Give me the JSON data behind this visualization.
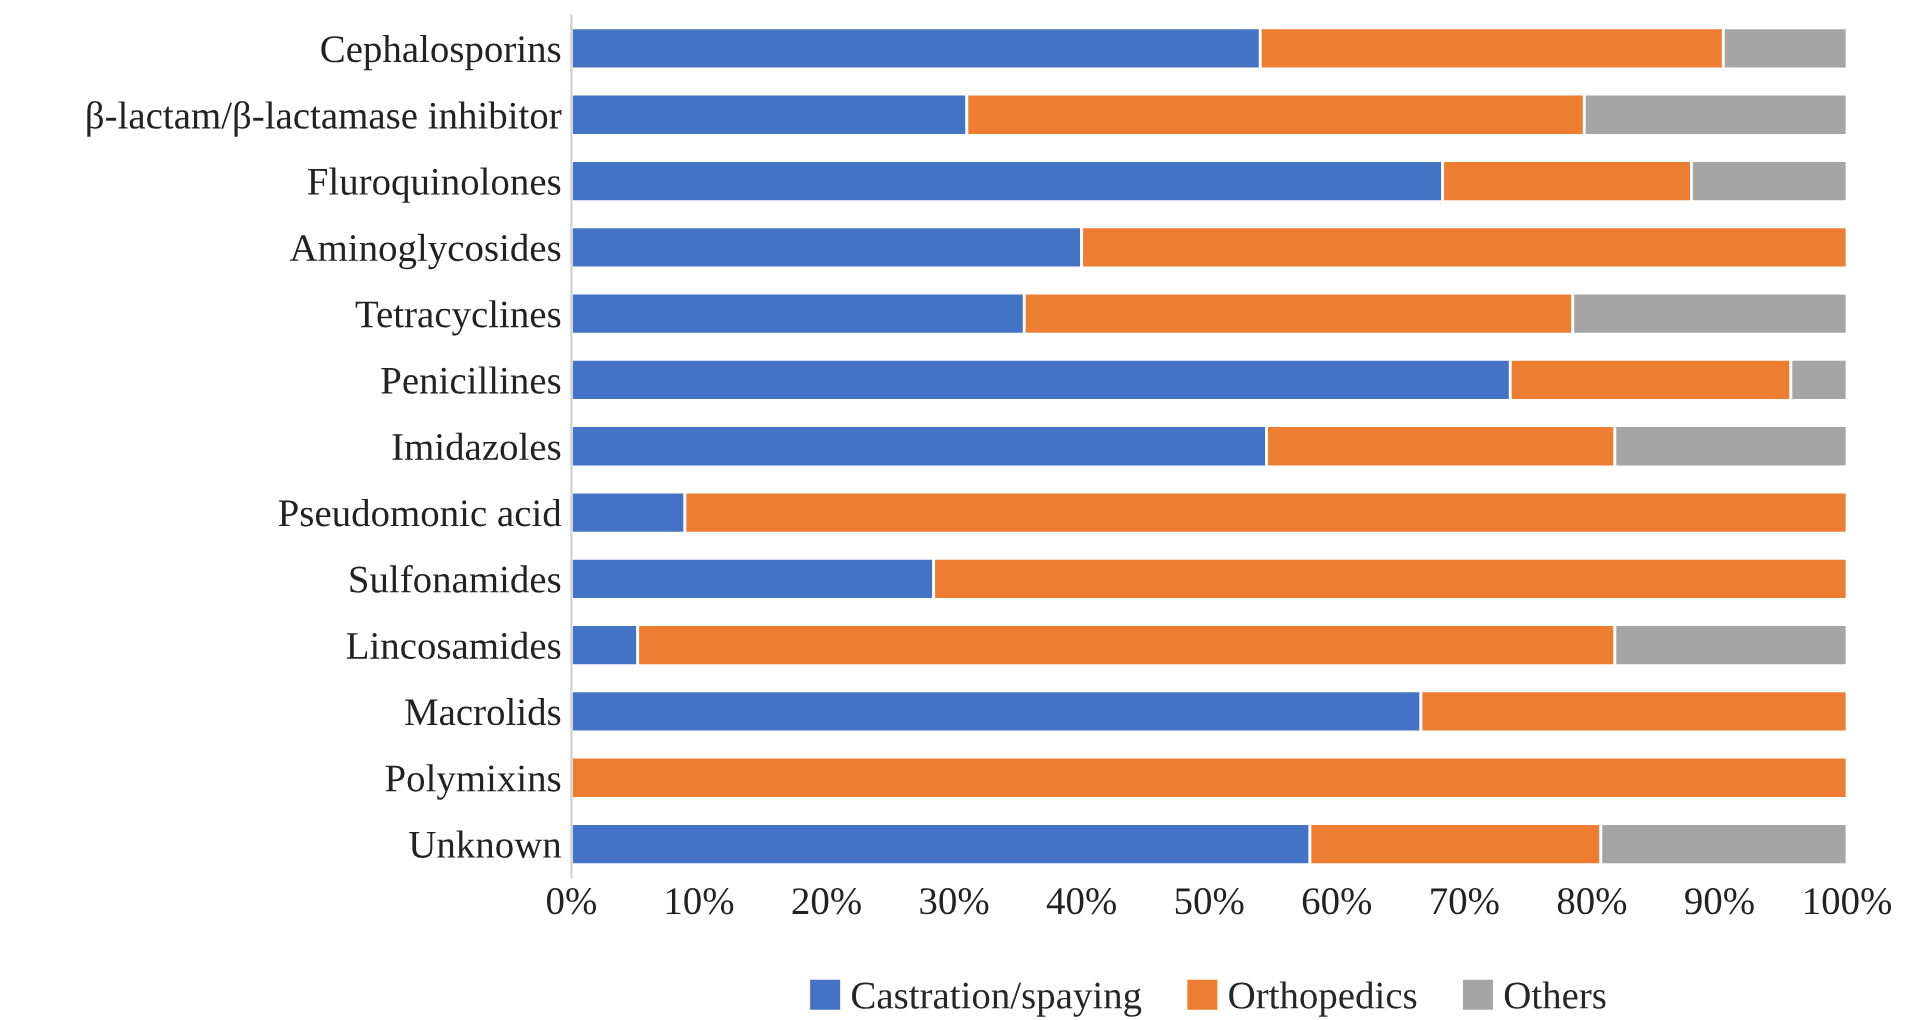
{
  "chart_data": {
    "type": "bar",
    "orientation": "horizontal",
    "stacked": true,
    "categories": [
      "Cephalosporins",
      "β-lactam/β-lactamase inhibitor",
      "Fluroquinolones",
      "Aminoglycosides",
      "Tetracyclines",
      "Penicillines",
      "Imidazoles",
      "Pseudomonic acid",
      "Sulfonamides",
      "Lincosamides",
      "Macrolids",
      "Polymixins",
      "Unknown"
    ],
    "series": [
      {
        "name": "Castration/spaying",
        "color": "#4472c4",
        "values": [
          54,
          31,
          68.3,
          40,
          35.5,
          73.6,
          54.5,
          8.9,
          28.4,
          5.2,
          66.6,
          null,
          57.9
        ]
      },
      {
        "name": "Orthopedics",
        "color": "#ed7d31",
        "values": [
          36.3,
          48.4,
          19.5,
          60,
          43,
          22,
          27.3,
          91.1,
          71.6,
          76.6,
          33.4,
          100,
          22.8
        ]
      },
      {
        "name": "Others",
        "color": "#a5a5a5",
        "values": [
          9.7,
          20.6,
          12.2,
          null,
          21.5,
          4.4,
          18.2,
          null,
          null,
          18.2,
          null,
          null,
          19.3
        ]
      }
    ],
    "xlim": [
      0,
      100
    ],
    "xticks": [
      {
        "value": 0,
        "label": "0%"
      },
      {
        "value": 10,
        "label": "10%"
      },
      {
        "value": 20,
        "label": "20%"
      },
      {
        "value": 30,
        "label": "30%"
      },
      {
        "value": 40,
        "label": "40%"
      },
      {
        "value": 50,
        "label": "50%"
      },
      {
        "value": 60,
        "label": "60%"
      },
      {
        "value": 70,
        "label": "70%"
      },
      {
        "value": 80,
        "label": "80%"
      },
      {
        "value": 90,
        "label": "90%"
      },
      {
        "value": 100,
        "label": "100%"
      }
    ],
    "grid": false,
    "legend": "bottom"
  }
}
